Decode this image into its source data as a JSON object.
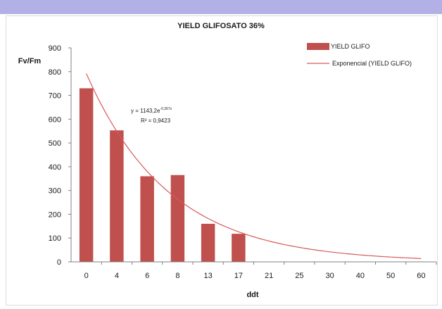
{
  "chart_data": {
    "type": "bar",
    "title": "YIELD GLIFOSATO 36%",
    "xlabel": "ddt",
    "ylabel": "Fv/Fm",
    "categories": [
      "0",
      "4",
      "6",
      "8",
      "13",
      "17",
      "21",
      "25",
      "30",
      "40",
      "50",
      "60"
    ],
    "series": [
      {
        "name": "YIELD GLIFO",
        "values": [
          730,
          553,
          360,
          365,
          160,
          118,
          null,
          null,
          null,
          null,
          null,
          null
        ],
        "color": "#c0504d"
      }
    ],
    "trendline": {
      "name": "Exponencial (YIELD GLIFO)",
      "type": "exponential",
      "a": 1143.2,
      "b": -0.367,
      "equation_prefix": "y = 1143,2e",
      "equation_exponent": "-0,367x",
      "r2_text": "R² = 0,9423",
      "color": "#d55a5a"
    },
    "ylim": [
      0,
      900
    ],
    "yticks": [
      0,
      100,
      200,
      300,
      400,
      500,
      600,
      700,
      800,
      900
    ],
    "grid": false,
    "legend_position": "top-right"
  }
}
